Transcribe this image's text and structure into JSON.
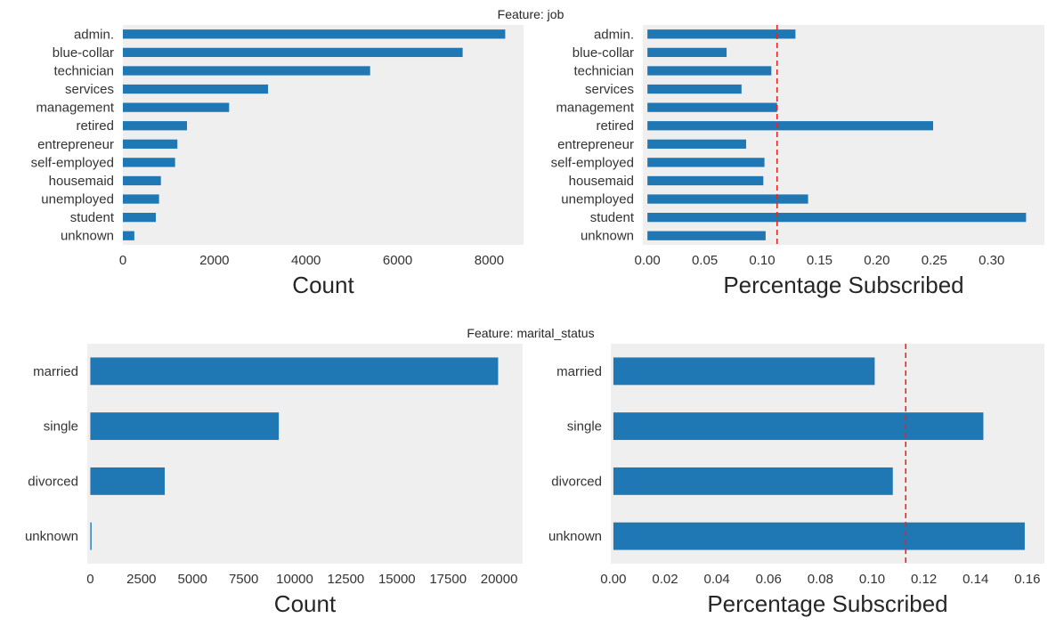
{
  "figure": {
    "suptitle_top": "Feature: job",
    "suptitle_bottom": "Feature: marital_status"
  },
  "colors": {
    "bar": "#1f77b4",
    "panel_bg": "#efefef",
    "ref_line": "#e8251f"
  },
  "chart_data": [
    {
      "type": "bar",
      "orientation": "horizontal",
      "feature": "job",
      "categories": [
        "admin.",
        "blue-collar",
        "technician",
        "services",
        "management",
        "retired",
        "entrepreneur",
        "self-employed",
        "housemaid",
        "unemployed",
        "student",
        "unknown"
      ],
      "values": [
        8350,
        7420,
        5400,
        3170,
        2320,
        1400,
        1190,
        1140,
        830,
        790,
        720,
        250
      ],
      "xlabel": "Count",
      "xlim": [
        0,
        8750
      ],
      "xticks": [
        0,
        2000,
        4000,
        6000,
        8000
      ],
      "xtick_labels": [
        "0",
        "2000",
        "4000",
        "6000",
        "8000"
      ],
      "grid": false
    },
    {
      "type": "bar",
      "orientation": "horizontal",
      "feature": "job",
      "categories": [
        "admin.",
        "blue-collar",
        "technician",
        "services",
        "management",
        "retired",
        "entrepreneur",
        "self-employed",
        "housemaid",
        "unemployed",
        "student",
        "unknown"
      ],
      "values": [
        0.129,
        0.069,
        0.108,
        0.082,
        0.113,
        0.249,
        0.086,
        0.102,
        0.101,
        0.14,
        0.33,
        0.103
      ],
      "xlabel": "Percentage Subscribed",
      "xlim": [
        -0.004,
        0.346
      ],
      "xticks": [
        0.0,
        0.05,
        0.1,
        0.15,
        0.2,
        0.25,
        0.3
      ],
      "xtick_labels": [
        "0.00",
        "0.05",
        "0.10",
        "0.15",
        "0.20",
        "0.25",
        "0.30"
      ],
      "reference_line": 0.113,
      "grid": false
    },
    {
      "type": "bar",
      "orientation": "horizontal",
      "feature": "marital_status",
      "categories": [
        "married",
        "single",
        "divorced",
        "unknown"
      ],
      "values": [
        19950,
        9220,
        3640,
        60
      ],
      "xlabel": "Count",
      "xlim": [
        -150,
        21150
      ],
      "xticks": [
        0,
        2500,
        5000,
        7500,
        10000,
        12500,
        15000,
        17500,
        20000
      ],
      "xtick_labels": [
        "0",
        "2500",
        "5000",
        "7500",
        "10000",
        "12500",
        "15000",
        "17500",
        "20000"
      ],
      "grid": false
    },
    {
      "type": "bar",
      "orientation": "horizontal",
      "feature": "marital_status",
      "categories": [
        "married",
        "single",
        "divorced",
        "unknown"
      ],
      "values": [
        0.101,
        0.143,
        0.108,
        0.159
      ],
      "xlabel": "Percentage Subscribed",
      "xlim": [
        -0.001,
        0.1666
      ],
      "xticks": [
        0.0,
        0.02,
        0.04,
        0.06,
        0.08,
        0.1,
        0.12,
        0.14,
        0.16
      ],
      "xtick_labels": [
        "0.00",
        "0.02",
        "0.04",
        "0.06",
        "0.08",
        "0.10",
        "0.12",
        "0.14",
        "0.16"
      ],
      "reference_line": 0.113,
      "grid": false
    }
  ]
}
